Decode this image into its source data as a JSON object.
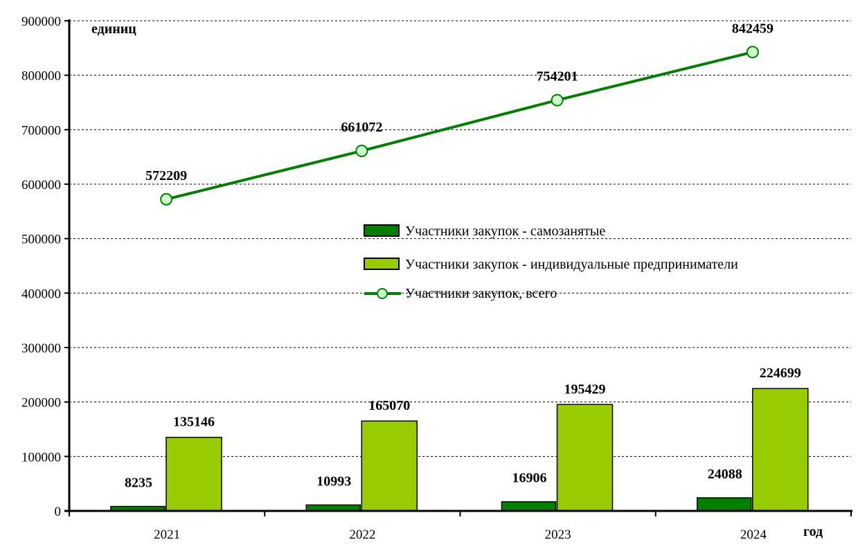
{
  "chart_data": {
    "type": "bar",
    "title": "",
    "ylabel": "единиц",
    "xlabel": "год",
    "ylim": [
      0,
      900000
    ],
    "yticks": [
      "0",
      "100000",
      "200000",
      "300000",
      "400000",
      "500000",
      "600000",
      "700000",
      "800000",
      "900000"
    ],
    "grid": true,
    "legend_position": "center-right",
    "categories": [
      "2021",
      "2022",
      "2023",
      "2024"
    ],
    "series": [
      {
        "name": "Участники закупок - самозанятые",
        "kind": "bar",
        "color": "#008000",
        "values": [
          8235,
          10993,
          16906,
          24088
        ]
      },
      {
        "name": "Участники закупок - индивидуальные предприниматели",
        "kind": "bar",
        "color": "#99CC00",
        "values": [
          135146,
          165070,
          195429,
          224699
        ]
      },
      {
        "name": "Участники закупок, всего",
        "kind": "line",
        "color": "#008000",
        "marker_fill": "#CCFFCC",
        "values": [
          572209,
          661072,
          754201,
          842459
        ]
      }
    ]
  }
}
